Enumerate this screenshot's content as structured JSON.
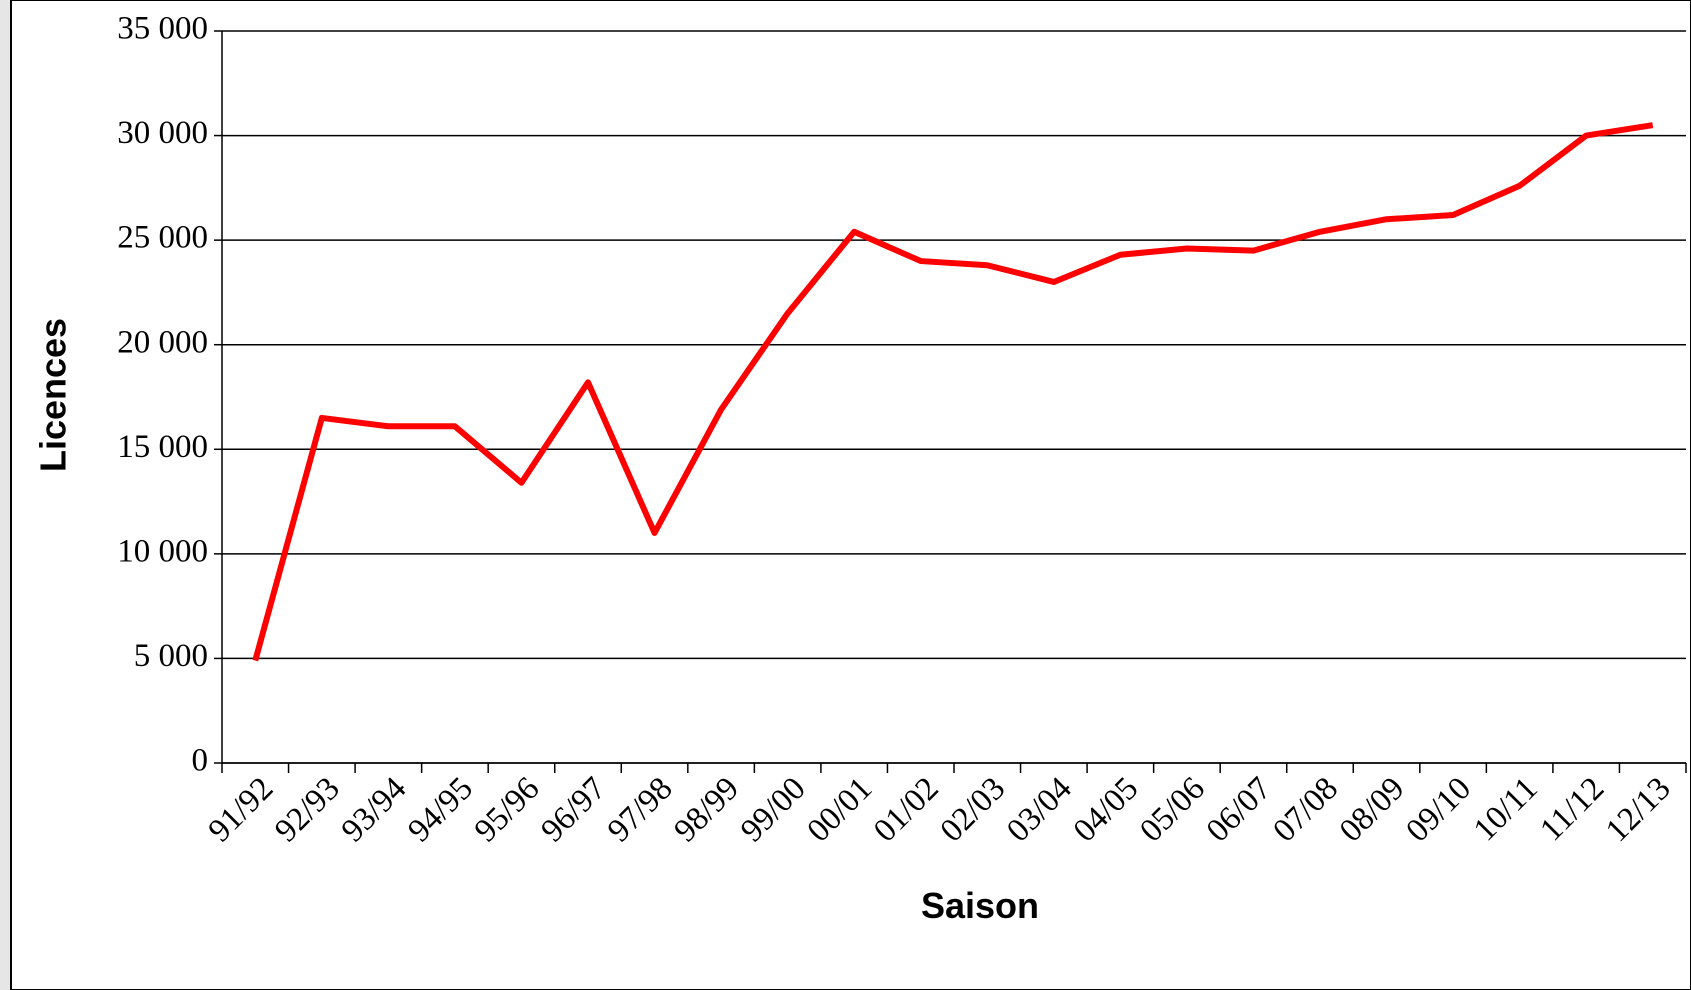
{
  "chart_data": {
    "type": "line",
    "x_label": "Saison",
    "y_label": "Licences",
    "categories": [
      "91/92",
      "92/93",
      "93/94",
      "94/95",
      "95/96",
      "96/97",
      "97/98",
      "98/99",
      "99/00",
      "00/01",
      "01/02",
      "02/03",
      "03/04",
      "04/05",
      "05/06",
      "06/07",
      "07/08",
      "08/09",
      "09/10",
      "10/11",
      "11/12",
      "12/13"
    ],
    "series": [
      {
        "name": "Licences",
        "color": "#ff0000",
        "values": [
          4900,
          16500,
          16100,
          16100,
          13400,
          18200,
          11000,
          16900,
          21500,
          25400,
          24000,
          23800,
          23000,
          24300,
          24600,
          24500,
          25400,
          26000,
          26200,
          27600,
          30000,
          30500
        ]
      }
    ],
    "ylim": [
      0,
      35000
    ],
    "yticks": [
      0,
      {
        "value": 5000,
        "label": "5 000"
      },
      {
        "value": 10000,
        "label": "10 000"
      },
      {
        "value": 15000,
        "label": "15 000"
      },
      {
        "value": 20000,
        "label": "20 000"
      },
      {
        "value": 25000,
        "label": "25 000"
      },
      {
        "value": 30000,
        "label": "30 000"
      },
      {
        "value": 35000,
        "label": "35 000"
      }
    ],
    "grid": true
  }
}
